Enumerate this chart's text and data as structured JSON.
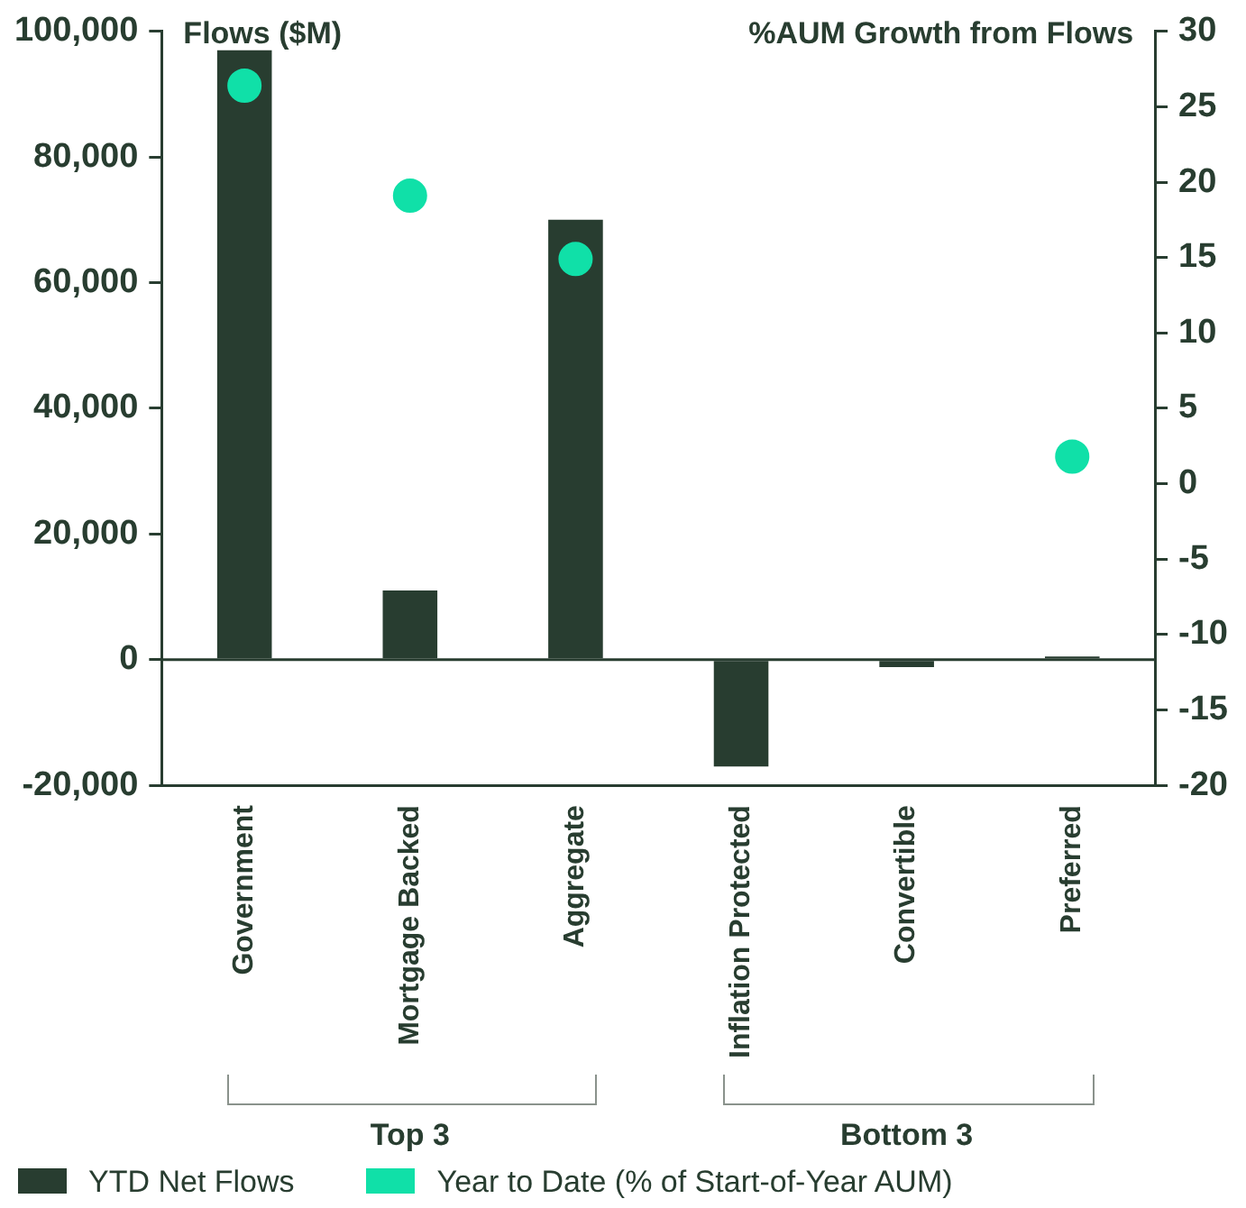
{
  "chart_data": {
    "type": "bar",
    "ylabel": "Flows ($M)",
    "y2label": "%AUM Growth from Flows",
    "categories": [
      "Government",
      "Mortgage Backed",
      "Aggregate",
      "Inflation Protected",
      "Convertible",
      "Preferred"
    ],
    "series": [
      {
        "name": "YTD Net Flows",
        "color": "#283d30",
        "values": [
          97000,
          11000,
          70000,
          -17000,
          -1200,
          500
        ]
      },
      {
        "name": "Year to Date (% of Start-of-Year AUM)",
        "type": "scatter",
        "axis": "y2",
        "color": "#10e0a8",
        "marker": "circle",
        "values": [
          26.4,
          19.1,
          14.9,
          null,
          null,
          1.8
        ]
      }
    ],
    "ylim": [
      -20000,
      100000
    ],
    "yticks": [
      {
        "value": -20000,
        "label": "-20,000"
      },
      {
        "value": 0,
        "label": "0"
      },
      {
        "value": 20000,
        "label": "20,000"
      },
      {
        "value": 40000,
        "label": "40,000"
      },
      {
        "value": 60000,
        "label": "60,000"
      },
      {
        "value": 80000,
        "label": "80,000"
      },
      {
        "value": 100000,
        "label": "100,000"
      }
    ],
    "y2lim": [
      -20,
      30
    ],
    "y2ticks": [
      -20,
      -15,
      -10,
      -5,
      0,
      5,
      10,
      15,
      20,
      25,
      30
    ],
    "annotations": [
      "Top 3",
      "Bottom 3"
    ],
    "ref_lines": [
      {
        "axis": "y",
        "value": 0,
        "color": "#283d30"
      }
    ],
    "grid": false,
    "legend": "bottom left"
  }
}
